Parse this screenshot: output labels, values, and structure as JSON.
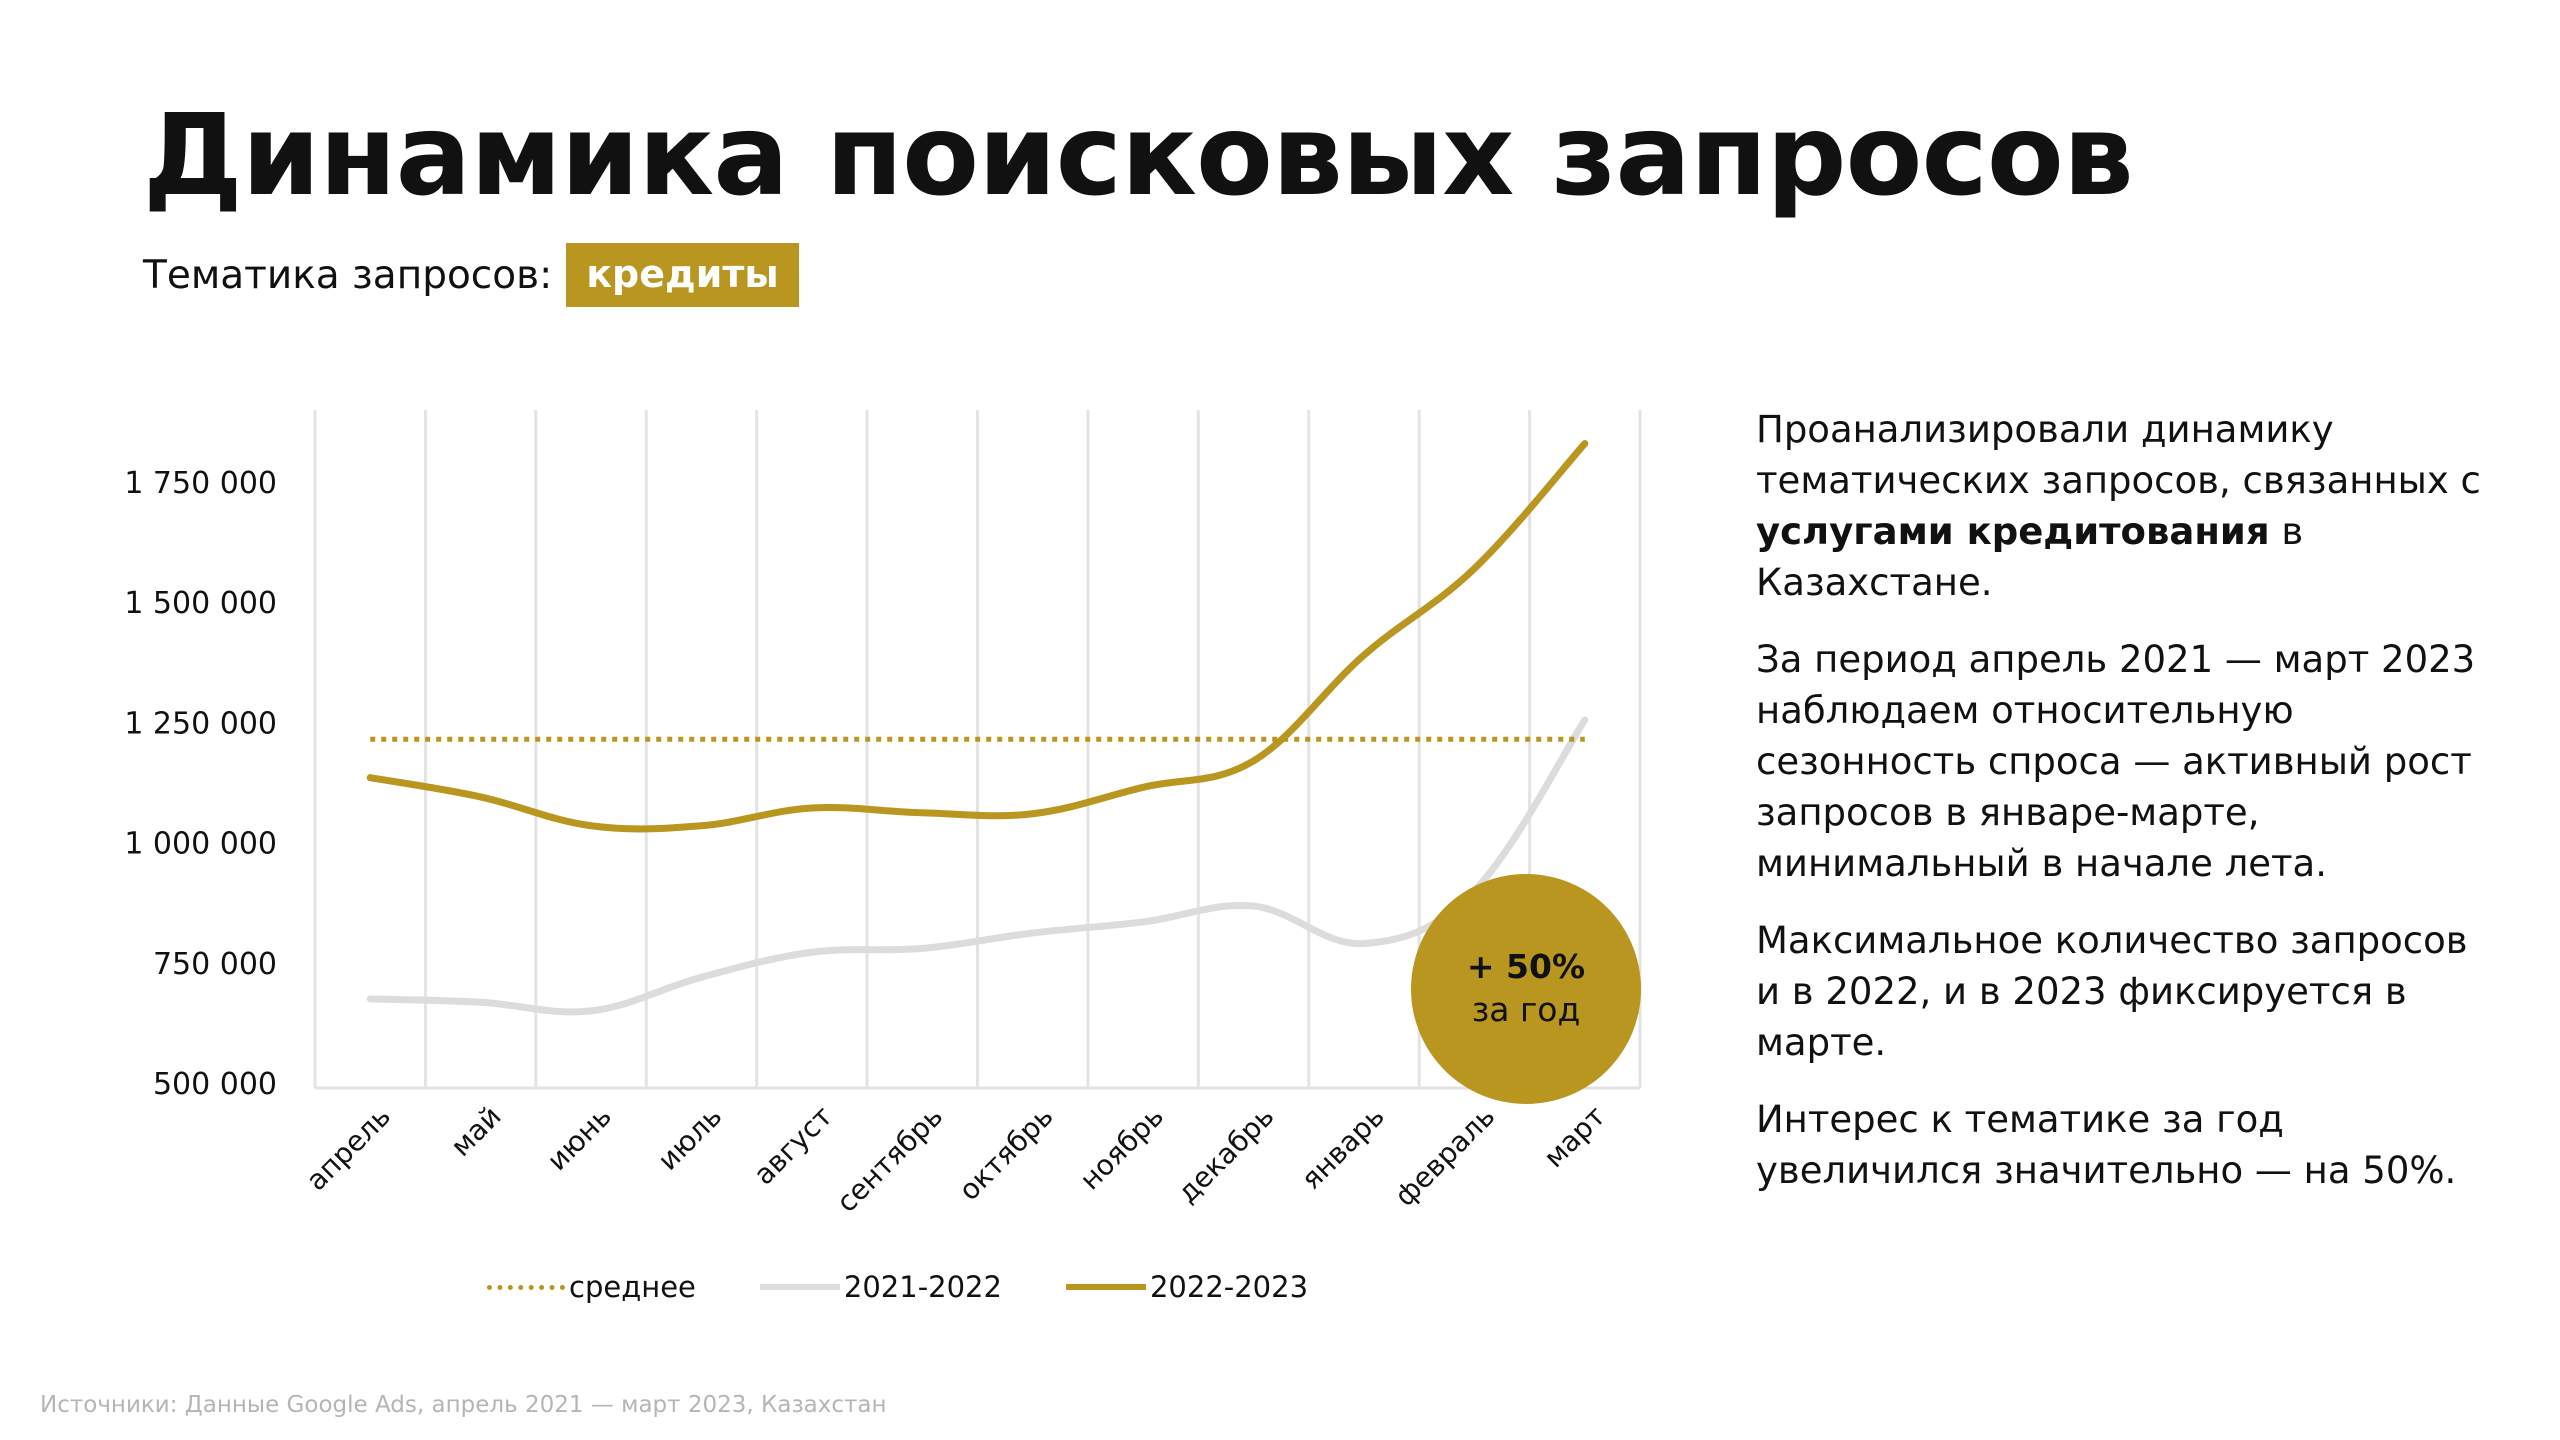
{
  "header": {
    "title": "Динамика поисковых запросов",
    "subtitle_label": "Тематика запросов:",
    "topic_tag": "кредиты"
  },
  "callout": {
    "value": "+ 50%",
    "label": "за год"
  },
  "side_text": {
    "p1_before": "Проанализировали динамику тематических запросов, связанных с ",
    "p1_bold": "услугами кредитования",
    "p1_after": " в Казахстане.",
    "p2": "За период апрель 2021 — март 2023 наблюдаем относительную сезонность спроса — активный рост запросов в январе-марте, минимальный в начале лета.",
    "p3": "Максимальное количество запросов и в 2022, и в 2023 фиксируется в марте.",
    "p4": "Интерес к тематике за год увеличился значительно — на 50%."
  },
  "source": "Источники: Данные Google Ads, апрель 2021 — март 2023, Казахстан",
  "colors": {
    "accent": "#b8961f",
    "series_2021_2022": "#dcdcdc",
    "grid": "#e3e3e3",
    "text": "#111111",
    "muted": "#b5b5b5"
  },
  "chart_data": {
    "type": "line",
    "categories": [
      "апрель",
      "май",
      "июнь",
      "июль",
      "август",
      "сентябрь",
      "октябрь",
      "ноябрь",
      "декабрь",
      "январь",
      "февраль",
      "март"
    ],
    "series": [
      {
        "name": "2021-2022",
        "color": "#dcdcdc",
        "style": "solid",
        "values": [
          675000,
          668000,
          650000,
          720000,
          772000,
          780000,
          812000,
          835000,
          868000,
          790000,
          900000,
          1255000
        ]
      },
      {
        "name": "2022-2023",
        "color": "#b8961f",
        "style": "solid",
        "values": [
          1135000,
          1095000,
          1035000,
          1035000,
          1072000,
          1062000,
          1060000,
          1115000,
          1170000,
          1390000,
          1570000,
          1830000
        ]
      },
      {
        "name": "среднее",
        "color": "#b8961f",
        "style": "dotted",
        "values": [
          1215000,
          1215000,
          1215000,
          1215000,
          1215000,
          1215000,
          1215000,
          1215000,
          1215000,
          1215000,
          1215000,
          1215000
        ]
      }
    ],
    "y_ticks": [
      {
        "value": 500000,
        "label": "500 000"
      },
      {
        "value": 750000,
        "label": "750 000"
      },
      {
        "value": 1000000,
        "label": "1 000 000"
      },
      {
        "value": 1250000,
        "label": "1 250 000"
      },
      {
        "value": 1500000,
        "label": "1 500 000"
      },
      {
        "value": 1750000,
        "label": "1 750 000"
      }
    ],
    "ylim": [
      500000,
      1850000
    ],
    "grid": "vertical",
    "legend_position": "bottom",
    "legend": [
      "среднее",
      "2021-2022",
      "2022-2023"
    ],
    "title": "",
    "xlabel": "",
    "ylabel": ""
  }
}
